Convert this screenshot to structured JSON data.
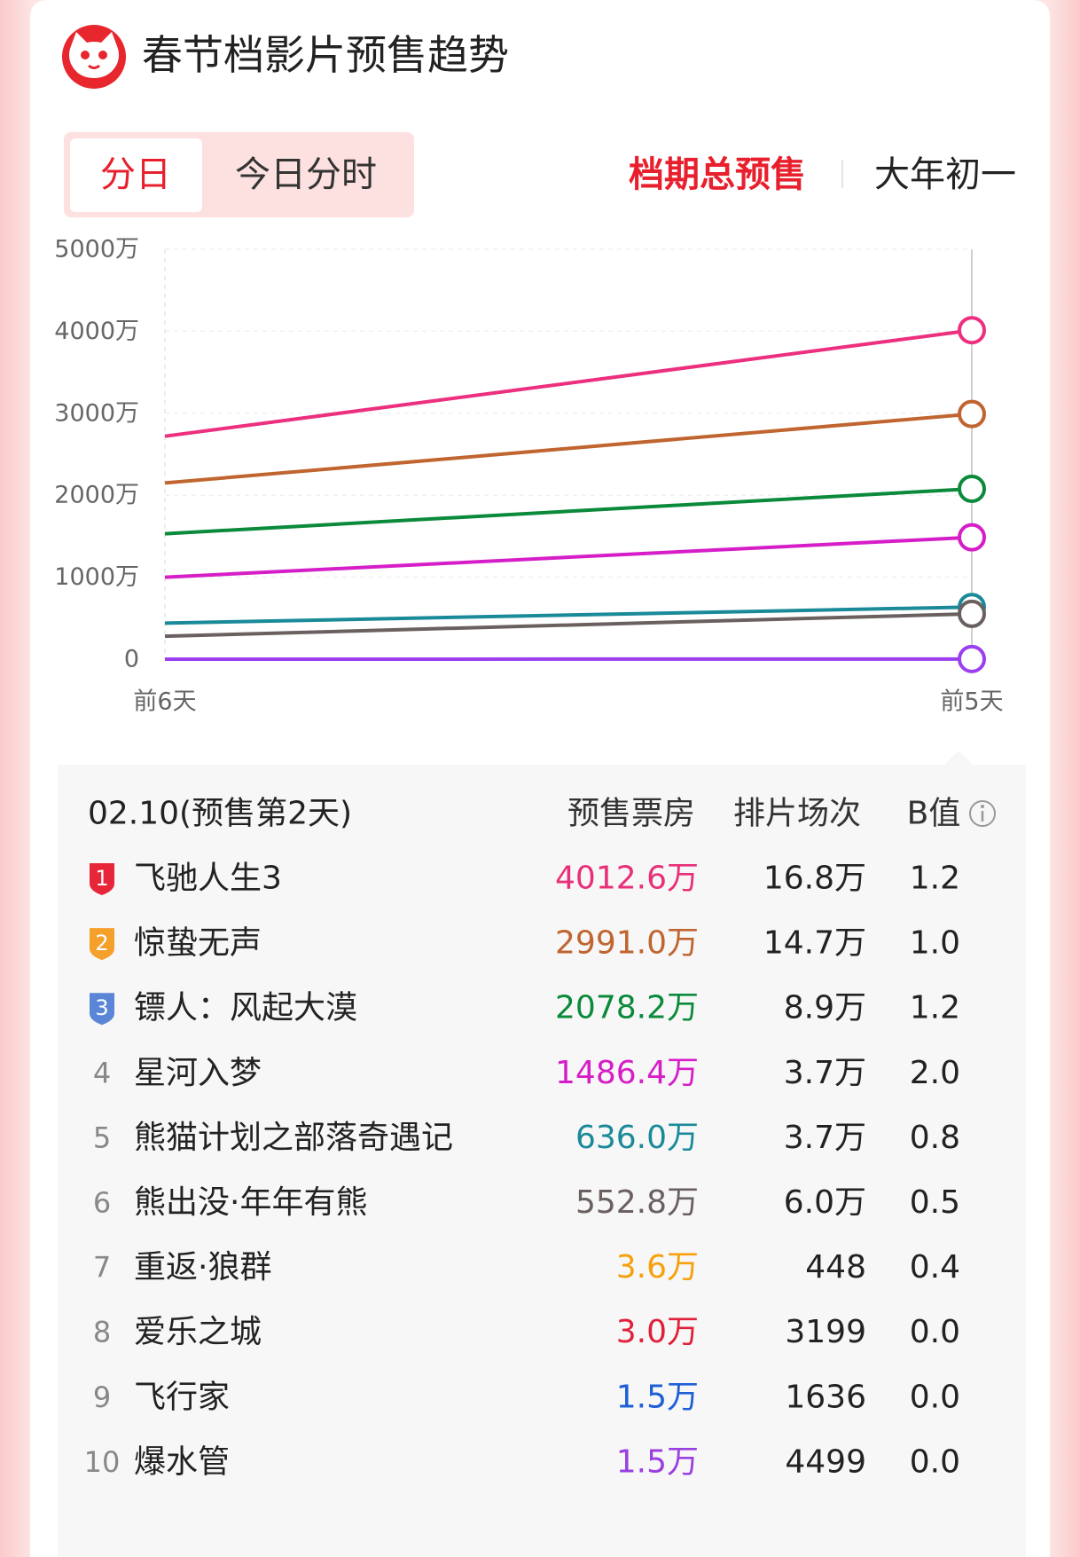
{
  "header": {
    "title": "春节档影片预售趋势"
  },
  "tabs": [
    "分日",
    "今日分时"
  ],
  "filters": [
    "档期总预售",
    "大年初一"
  ],
  "chart_data": {
    "type": "line",
    "x": [
      "前6天",
      "前5天"
    ],
    "series": [
      {
        "color": "#ec2f7e",
        "values": [
          2720,
          4012.6
        ]
      },
      {
        "color": "#c0652f",
        "values": [
          2150,
          2991.0
        ]
      },
      {
        "color": "#0a8a3a",
        "values": [
          1530,
          2078.2
        ]
      },
      {
        "color": "#d61ec8",
        "values": [
          1000,
          1486.4
        ]
      },
      {
        "color": "#1a8a99",
        "values": [
          440,
          636.0
        ]
      },
      {
        "color": "#6b6060",
        "values": [
          280,
          552.8
        ]
      },
      {
        "color": "#9b3ff0",
        "values": [
          0,
          1.5
        ]
      }
    ],
    "ylim": [
      0,
      5000
    ],
    "yticks": [
      0,
      {
        "value": 1000,
        "label": "1000万"
      },
      {
        "value": 2000,
        "label": "2000万"
      },
      {
        "value": 3000,
        "label": "3000万"
      },
      {
        "value": 4000,
        "label": "4000万"
      },
      {
        "value": 5000,
        "label": "5000万"
      }
    ],
    "grid": true
  },
  "table": {
    "date": "02.10(预售第2天)",
    "columns": [
      "预售票房",
      "排片场次",
      "B值"
    ],
    "rows": [
      {
        "rank": "1",
        "name": "飞驰人生3",
        "box_office": "4012.6万",
        "color": "#e8307a",
        "sessions": "16.8万",
        "b": "1.2"
      },
      {
        "rank": "2",
        "name": "惊蛰无声",
        "box_office": "2991.0万",
        "color": "#c0652f",
        "sessions": "14.7万",
        "b": "1.0"
      },
      {
        "rank": "3",
        "name": "镖人：风起大漠",
        "box_office": "2078.2万",
        "color": "#0a8a3a",
        "sessions": "8.9万",
        "b": "1.2"
      },
      {
        "rank": "4",
        "name": "星河入梦",
        "box_office": "1486.4万",
        "color": "#d61ec8",
        "sessions": "3.7万",
        "b": "2.0"
      },
      {
        "rank": "5",
        "name": "熊猫计划之部落奇遇记",
        "box_office": "636.0万",
        "color": "#1a8a99",
        "sessions": "3.7万",
        "b": "0.8"
      },
      {
        "rank": "6",
        "name": "熊出没·年年有熊",
        "box_office": "552.8万",
        "color": "#6b6060",
        "sessions": "6.0万",
        "b": "0.5"
      },
      {
        "rank": "7",
        "name": "重返·狼群",
        "box_office": "3.6万",
        "color": "#f5a00c",
        "sessions": "448",
        "b": "0.4"
      },
      {
        "rank": "8",
        "name": "爱乐之城",
        "box_office": "3.0万",
        "color": "#e0203a",
        "sessions": "3199",
        "b": "0.0"
      },
      {
        "rank": "9",
        "name": "飞行家",
        "box_office": "1.5万",
        "color": "#1f5fd6",
        "sessions": "1636",
        "b": "0.0"
      },
      {
        "rank": "10",
        "name": "爆水管",
        "box_office": "1.5万",
        "color": "#9a40e0",
        "sessions": "4499",
        "b": "0.0"
      }
    ]
  }
}
